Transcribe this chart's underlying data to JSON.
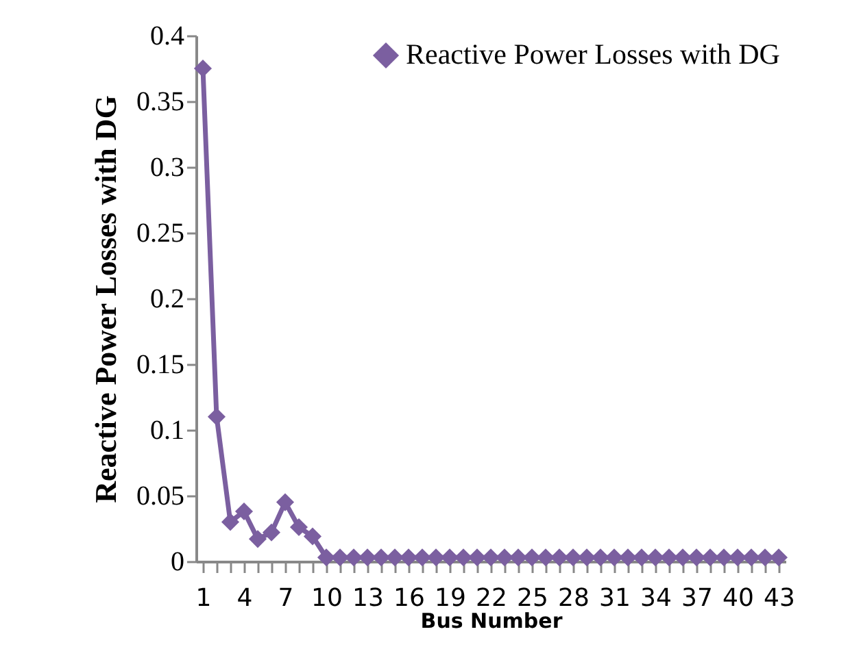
{
  "chart_data": {
    "type": "line",
    "xlabel": "Bus Number",
    "ylabel": "Reactive Power Losses with DG",
    "categories": [
      "1",
      null,
      null,
      "4",
      null,
      null,
      "7",
      null,
      null,
      "10",
      null,
      null,
      "13",
      null,
      null,
      "16",
      null,
      null,
      "19",
      null,
      null,
      "22",
      null,
      null,
      "25",
      null,
      null,
      "28",
      null,
      null,
      "31",
      null,
      null,
      "34",
      null,
      null,
      "37",
      null,
      null,
      "40",
      null,
      null,
      "43"
    ],
    "series": [
      {
        "name": "Reactive Power Losses with DG",
        "color": "#7b5fa0",
        "values": [
          0.375,
          0.11,
          0.03,
          0.038,
          0.017,
          0.022,
          0.045,
          0.026,
          0.019,
          0.003,
          0.003,
          0.003,
          0.003,
          0.003,
          0.003,
          0.003,
          0.003,
          0.003,
          0.003,
          0.003,
          0.003,
          0.003,
          0.003,
          0.003,
          0.003,
          0.003,
          0.003,
          0.003,
          0.003,
          0.003,
          0.003,
          0.003,
          0.003,
          0.003,
          0.003,
          0.003,
          0.003,
          0.003,
          0.003,
          0.003,
          0.003,
          0.003,
          0.003
        ]
      }
    ],
    "ylim": [
      0,
      0.4
    ],
    "yticks": [
      0,
      0.05,
      0.1,
      0.15,
      0.2,
      0.25,
      0.3,
      0.35,
      0.4
    ],
    "legend": "top right",
    "marker": "diamond",
    "line_style": "solid",
    "grid": false
  }
}
